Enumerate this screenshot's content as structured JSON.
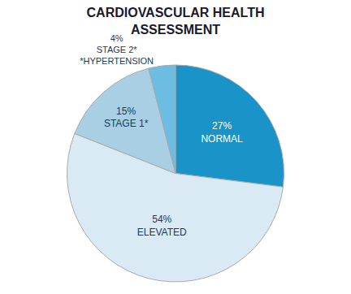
{
  "chart_data": {
    "type": "pie",
    "title": "CARDIOVASCULAR HEALTH\nASSESSMENT",
    "categories": [
      "NORMAL",
      "ELEVATED",
      "STAGE 1*",
      "STAGE 2*"
    ],
    "values": [
      27,
      54,
      15,
      4
    ],
    "value_labels": [
      "27%",
      "54%",
      "15%",
      "4%"
    ],
    "colors": [
      "#1a93c8",
      "#daeaf5",
      "#a8cfe3",
      "#6dbde3"
    ],
    "data_labels": true,
    "annotations": [
      {
        "text": "*HYPERTENSION",
        "category": "STAGE 2*"
      }
    ]
  }
}
